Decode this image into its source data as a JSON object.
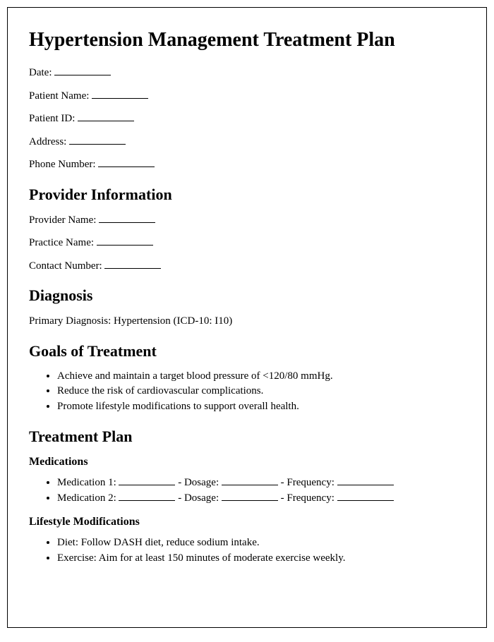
{
  "title": "Hypertension Management Treatment Plan",
  "patient": {
    "date_label": "Date:",
    "name_label": "Patient Name:",
    "id_label": "Patient ID:",
    "address_label": "Address:",
    "phone_label": "Phone Number:"
  },
  "provider": {
    "heading": "Provider Information",
    "name_label": "Provider Name:",
    "practice_label": "Practice Name:",
    "contact_label": "Contact Number:"
  },
  "diagnosis": {
    "heading": "Diagnosis",
    "text": "Primary Diagnosis: Hypertension (ICD-10: I10)"
  },
  "goals": {
    "heading": "Goals of Treatment",
    "items": [
      "Achieve and maintain a target blood pressure of <120/80 mmHg.",
      "Reduce the risk of cardiovascular complications.",
      "Promote lifestyle modifications to support overall health."
    ]
  },
  "plan": {
    "heading": "Treatment Plan",
    "medications": {
      "heading": "Medications",
      "med1_label": "Medication 1:",
      "med2_label": "Medication 2:",
      "dosage_label": " - Dosage:",
      "frequency_label": " - Frequency:"
    },
    "lifestyle": {
      "heading": "Lifestyle Modifications",
      "items": [
        "Diet: Follow DASH diet, reduce sodium intake.",
        "Exercise: Aim for at least 150 minutes of moderate exercise weekly."
      ]
    }
  }
}
